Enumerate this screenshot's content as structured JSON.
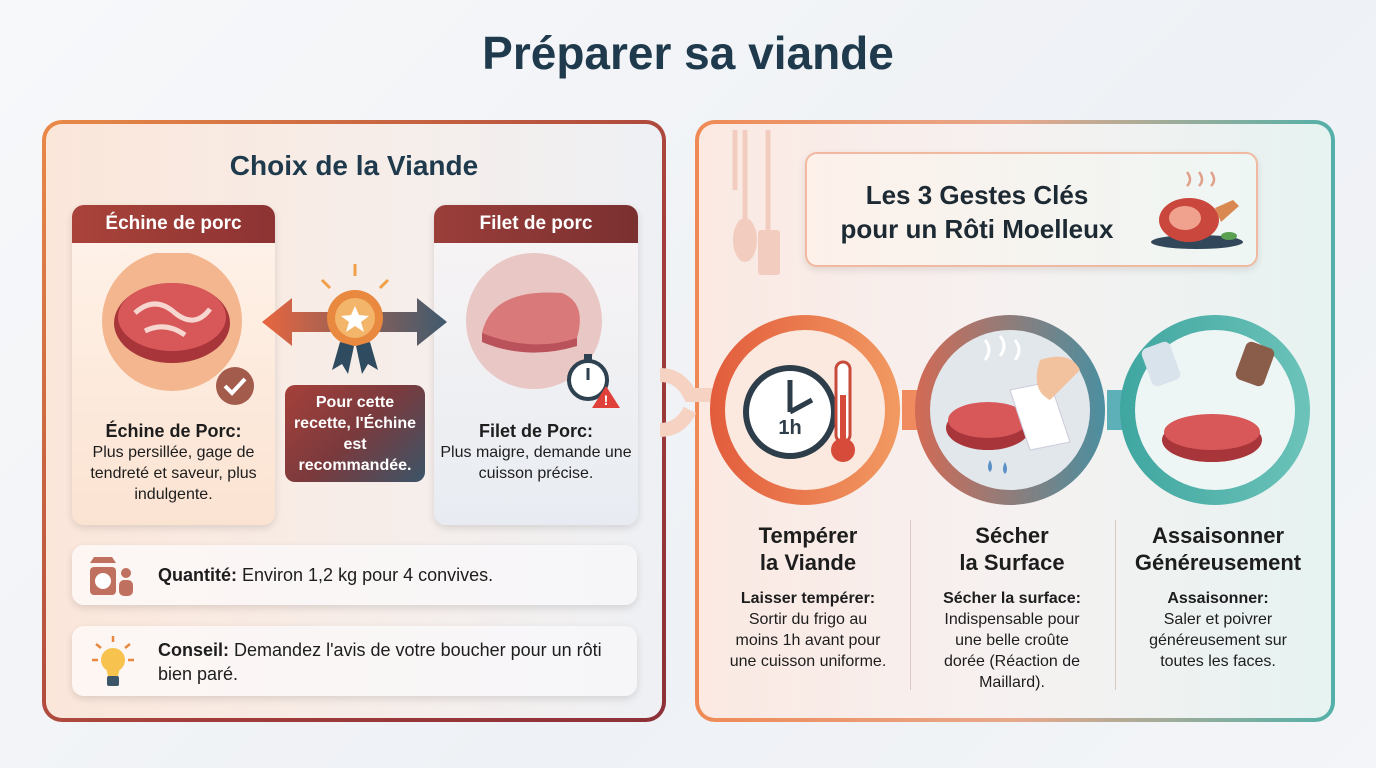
{
  "title": "Préparer sa viande",
  "left": {
    "heading": "Choix de la Viande",
    "cards": [
      {
        "tab": "Échine de porc",
        "name": "Échine de Porc:",
        "desc": "Plus persillée, gage de tendreté et saveur, plus indulgente.",
        "icon": "check-icon"
      },
      {
        "tab": "Filet de porc",
        "name": "Filet de Porc:",
        "desc": "Plus maigre, demande une cuisson précise.",
        "icon": "stopwatch-warning-icon"
      }
    ],
    "recommendation": "Pour cette recette, l'Échine est recommandée.",
    "quantity": {
      "label": "Quantité:",
      "text": "Environ 1,2 kg pour 4 convives.",
      "icon": "scale-icon"
    },
    "tip": {
      "label": "Conseil:",
      "text": "Demandez l'avis de votre boucher pour un rôti bien paré.",
      "icon": "lightbulb-icon"
    }
  },
  "right": {
    "heading_line1": "Les 3 Gestes Clés",
    "heading_line2": "pour un Rôti Moelleux",
    "steps": [
      {
        "title1": "Tempérer",
        "title2": "la Viande",
        "subtitle": "Laisser tempérer:",
        "desc": "Sortir du frigo au moins 1h avant pour une cuisson uniforme.",
        "clock_label": "1h"
      },
      {
        "title1": "Sécher",
        "title2": "la Surface",
        "subtitle": "Sécher la surface:",
        "desc": "Indispensable pour une belle croûte dorée (Réaction de Maillard)."
      },
      {
        "title1": "Assaisonner",
        "title2": "Généreusement",
        "subtitle": "Assaisonner:",
        "desc": "Saler et poivrer généreusement sur toutes les faces."
      }
    ]
  },
  "colors": {
    "title": "#1f3a4d",
    "accent_red": "#9e3b36",
    "accent_orange": "#ec8a4f",
    "accent_teal": "#52b0a8"
  }
}
